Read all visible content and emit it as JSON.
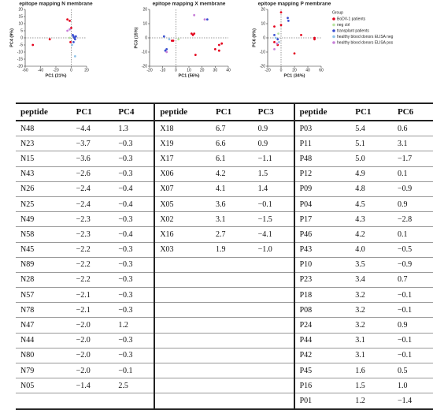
{
  "chart_data": [
    {
      "type": "scatter",
      "title": "epitope mapping N membrane",
      "x_label": "PC1 (21%)",
      "y_label": "PC4 (9%)",
      "xlim": [
        -60,
        20
      ],
      "xticks": [
        -60,
        -40,
        -20,
        0,
        20
      ],
      "ylim": [
        -20,
        20
      ],
      "yticks": [
        -20,
        -15,
        -10,
        -5,
        0,
        5,
        10,
        15,
        20
      ],
      "series": [
        {
          "name": "BoDV-1 patients",
          "color": "#e3001b",
          "x": [
            -50,
            -28,
            -5,
            -2,
            -1,
            0
          ],
          "y": [
            -5,
            -1,
            13,
            12,
            -3,
            7
          ]
        },
        {
          "name": "neg ctrl",
          "color": "#b8e3a0",
          "x": [
            -2
          ],
          "y": [
            0
          ]
        },
        {
          "name": "transplant patients",
          "color": "#3a4fd0",
          "x": [
            2,
            3,
            4,
            5,
            6,
            3
          ],
          "y": [
            2,
            1,
            0,
            -1,
            1,
            -3
          ]
        },
        {
          "name": "healthy blood donors ELISA neg",
          "color": "#8fc3e8",
          "x": [
            1,
            5
          ],
          "y": [
            -5,
            -13
          ]
        },
        {
          "name": "healthy blood donors ELISA pos",
          "color": "#c77fd8",
          "x": [
            -5,
            -2
          ],
          "y": [
            5,
            6
          ]
        }
      ]
    },
    {
      "type": "scatter",
      "title": "epitope mapping X membrane",
      "x_label": "PC1 (56%)",
      "y_label": "PC3 (15%)",
      "xlim": [
        -20,
        40
      ],
      "xticks": [
        -20,
        -10,
        0,
        10,
        20,
        30,
        40
      ],
      "ylim": [
        -20,
        20
      ],
      "yticks": [
        -20,
        -10,
        0,
        10,
        20
      ],
      "series": [
        {
          "name": "BoDV-1 patients",
          "color": "#e3001b",
          "x": [
            12,
            13,
            14,
            -3,
            -2,
            15,
            30,
            33,
            33,
            35
          ],
          "y": [
            3,
            2,
            3,
            -2,
            -2,
            -12,
            -8,
            -5,
            -9,
            -4
          ]
        },
        {
          "name": "neg ctrl",
          "color": "#b8e3a0",
          "x": [
            2
          ],
          "y": [
            -1
          ]
        },
        {
          "name": "transplant patients",
          "color": "#3a4fd0",
          "x": [
            -8,
            -9,
            -7,
            24
          ],
          "y": [
            -9,
            1,
            -8,
            13
          ]
        },
        {
          "name": "healthy blood donors ELISA neg",
          "color": "#8fc3e8",
          "x": [
            -5
          ],
          "y": [
            -1
          ]
        },
        {
          "name": "healthy blood donors ELISA pos",
          "color": "#c77fd8",
          "x": [
            14,
            -7,
            22
          ],
          "y": [
            16,
            -10,
            13
          ]
        }
      ]
    },
    {
      "type": "scatter",
      "title": "epitope mapping P membrane",
      "x_label": "PC1 (34%)",
      "y_label": "PC6 (6%)",
      "xlim": [
        -20,
        60
      ],
      "xticks": [
        -20,
        0,
        20,
        40,
        60
      ],
      "ylim": [
        -20,
        20
      ],
      "yticks": [
        -20,
        -10,
        0,
        10,
        20
      ],
      "legend_title": "Group",
      "series": [
        {
          "name": "BoDV-1 patients",
          "color": "#e3001b",
          "x": [
            -10,
            -10,
            0,
            0,
            -5,
            30,
            20,
            50,
            50
          ],
          "y": [
            8,
            -3,
            18,
            9,
            -5,
            2,
            -11,
            -1,
            0
          ]
        },
        {
          "name": "neg ctrl",
          "color": "#b8e3a0",
          "x": [
            -4
          ],
          "y": [
            3
          ]
        },
        {
          "name": "transplant patients",
          "color": "#3a4fd0",
          "x": [
            -10,
            -5,
            10,
            11
          ],
          "y": [
            2,
            -1,
            14,
            12
          ]
        },
        {
          "name": "healthy blood donors ELISA neg",
          "color": "#8fc3e8",
          "x": [
            -3,
            -8
          ],
          "y": [
            -3,
            0
          ]
        },
        {
          "name": "healthy blood donors ELISA pos",
          "color": "#c77fd8",
          "x": [
            -10,
            -6
          ],
          "y": [
            -8,
            -4
          ]
        }
      ]
    }
  ],
  "table": {
    "header": [
      "peptide",
      "PC1",
      "PC4",
      "peptide",
      "PC1",
      "PC3",
      "peptide",
      "PC1",
      "PC6"
    ],
    "rows": [
      [
        "N48",
        "−4.4",
        "1.3",
        "X18",
        "6.7",
        "0.9",
        "P03",
        "5.4",
        "0.6"
      ],
      [
        "N23",
        "−3.7",
        "−0.3",
        "X19",
        "6.6",
        "0.9",
        "P11",
        "5.1",
        "3.1"
      ],
      [
        "N15",
        "−3.6",
        "−0.3",
        "X17",
        "6.1",
        "−1.1",
        "P48",
        "5.0",
        "−1.7"
      ],
      [
        "N43",
        "−2.6",
        "−0.3",
        "X06",
        "4.2",
        "1.5",
        "P12",
        "4.9",
        "0.1"
      ],
      [
        "N26",
        "−2.4",
        "−0.4",
        "X07",
        "4.1",
        "1.4",
        "P09",
        "4.8",
        "−0.9"
      ],
      [
        "N25",
        "−2.4",
        "−0.4",
        "X05",
        "3.6",
        "−0.1",
        "P04",
        "4.5",
        "0.9"
      ],
      [
        "N49",
        "−2.3",
        "−0.3",
        "X02",
        "3.1",
        "−1.5",
        "P17",
        "4.3",
        "−2.8"
      ],
      [
        "N58",
        "−2.3",
        "−0.4",
        "X16",
        "2.7",
        "−4.1",
        "P46",
        "4.2",
        "0.1"
      ],
      [
        "N45",
        "−2.2",
        "−0.3",
        "X03",
        "1.9",
        "−1.0",
        "P43",
        "4.0",
        "−0.5"
      ],
      [
        "N89",
        "−2.2",
        "−0.3",
        null,
        null,
        null,
        "P10",
        "3.5",
        "−0.9"
      ],
      [
        "N28",
        "−2.2",
        "−0.3",
        null,
        null,
        null,
        "P23",
        "3.4",
        "0.7"
      ],
      [
        "N57",
        "−2.1",
        "−0.3",
        null,
        null,
        null,
        "P18",
        "3.2",
        "−0.1"
      ],
      [
        "N78",
        "−2.1",
        "−0.3",
        null,
        null,
        null,
        "P08",
        "3.2",
        "−0.1"
      ],
      [
        "N47",
        "−2.0",
        "1.2",
        null,
        null,
        null,
        "P24",
        "3.2",
        "0.9"
      ],
      [
        "N44",
        "−2.0",
        "−0.3",
        null,
        null,
        null,
        "P44",
        "3.1",
        "−0.1"
      ],
      [
        "N80",
        "−2.0",
        "−0.3",
        null,
        null,
        null,
        "P42",
        "3.1",
        "−0.1"
      ],
      [
        "N79",
        "−2.0",
        "−0.1",
        null,
        null,
        null,
        "P45",
        "1.6",
        "0.5"
      ],
      [
        "N05",
        "−1.4",
        "2.5",
        null,
        null,
        null,
        "P16",
        "1.5",
        "1.0"
      ],
      [
        null,
        null,
        null,
        null,
        null,
        null,
        "P01",
        "1.2",
        "−1.4"
      ]
    ]
  }
}
